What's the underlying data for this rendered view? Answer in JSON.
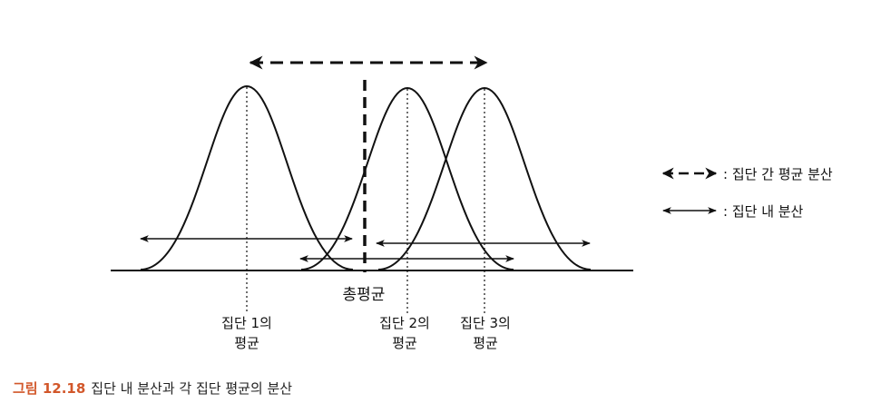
{
  "diagram": {
    "total_mean_label": "총평균",
    "group_means": [
      {
        "line1": "집단 1의",
        "line2": "평균"
      },
      {
        "line1": "집단 2의",
        "line2": "평균"
      },
      {
        "line1": "집단 3의",
        "line2": "평균"
      }
    ],
    "legend": [
      {
        "label": ": 집단 간 평균 분산",
        "style": "dashed"
      },
      {
        "label": ": 집단 내 분산",
        "style": "solid"
      }
    ]
  },
  "caption": {
    "number": "그림 12.18",
    "text": "집단 내 분산과 각 집단 평균의 분산"
  }
}
